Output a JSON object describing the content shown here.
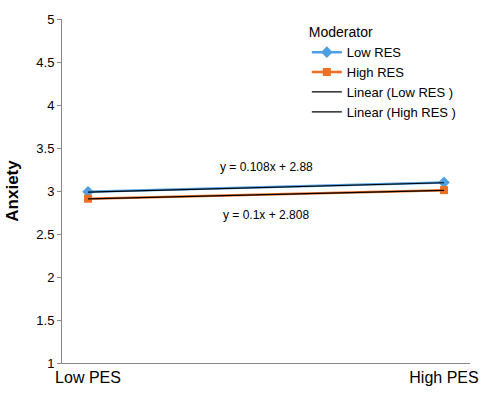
{
  "chart_data": {
    "type": "line",
    "y_label": "Anxiety",
    "legend_title": "Moderator",
    "legend": "top right",
    "grid": false,
    "data_labels": false,
    "categories": [
      "Low PES",
      "High PES"
    ],
    "ylim": [
      1,
      5
    ],
    "yticks": [
      1,
      1.5,
      2,
      2.5,
      3,
      3.5,
      4,
      4.5,
      5
    ],
    "series": [
      {
        "name": "Low RES",
        "color": "#4f9fe3",
        "marker": "diamond",
        "line_style": "solid",
        "values": [
          2.99,
          3.1
        ]
      },
      {
        "name": "High RES",
        "color": "#ed6f24",
        "marker": "square",
        "line_style": "solid",
        "values": [
          2.91,
          3.01
        ]
      },
      {
        "name": "Linear (Low RES )",
        "color": "#000000",
        "marker": "none",
        "line_style": "solid",
        "values": [
          2.988,
          3.096
        ],
        "label": "y = 0.108x + 2.88"
      },
      {
        "name": "Linear (High RES )",
        "color": "#000000",
        "marker": "none",
        "line_style": "solid",
        "values": [
          2.908,
          3.008
        ],
        "label": "y = 0.1x + 2.808"
      }
    ]
  }
}
